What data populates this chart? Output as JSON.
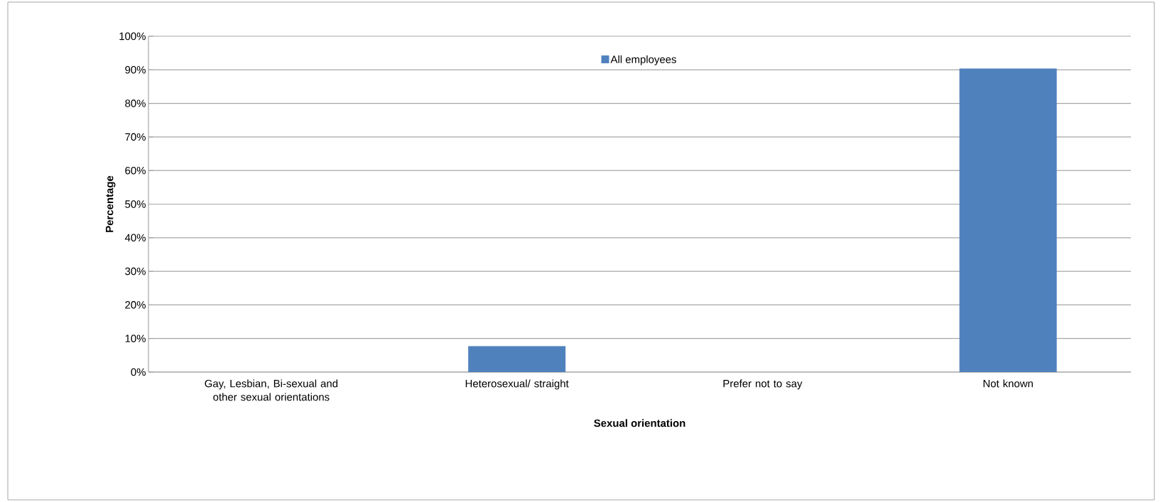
{
  "chart_data": {
    "type": "bar",
    "xlabel": "Sexual orientation",
    "ylabel": "Percentage",
    "categories": [
      "Gay, Lesbian, Bi-sexual and other sexual orientations",
      "Heterosexual/ straight",
      "Prefer not to say",
      "Not known"
    ],
    "series": [
      {
        "name": "All employees",
        "color": "#4f81bd",
        "values": [
          0,
          7.7,
          0,
          90.4
        ]
      }
    ],
    "ylim": [
      0,
      100
    ],
    "yticks": [
      {
        "value": 0,
        "label": "0%"
      },
      {
        "value": 10,
        "label": "10%"
      },
      {
        "value": 20,
        "label": "20%"
      },
      {
        "value": 30,
        "label": "30%"
      },
      {
        "value": 40,
        "label": "40%"
      },
      {
        "value": 50,
        "label": "50%"
      },
      {
        "value": 60,
        "label": "60%"
      },
      {
        "value": 70,
        "label": "70%"
      },
      {
        "value": 80,
        "label": "80%"
      },
      {
        "value": 90,
        "label": "90%"
      },
      {
        "value": 100,
        "label": "100%"
      }
    ],
    "grid": "y",
    "legend": "top"
  }
}
